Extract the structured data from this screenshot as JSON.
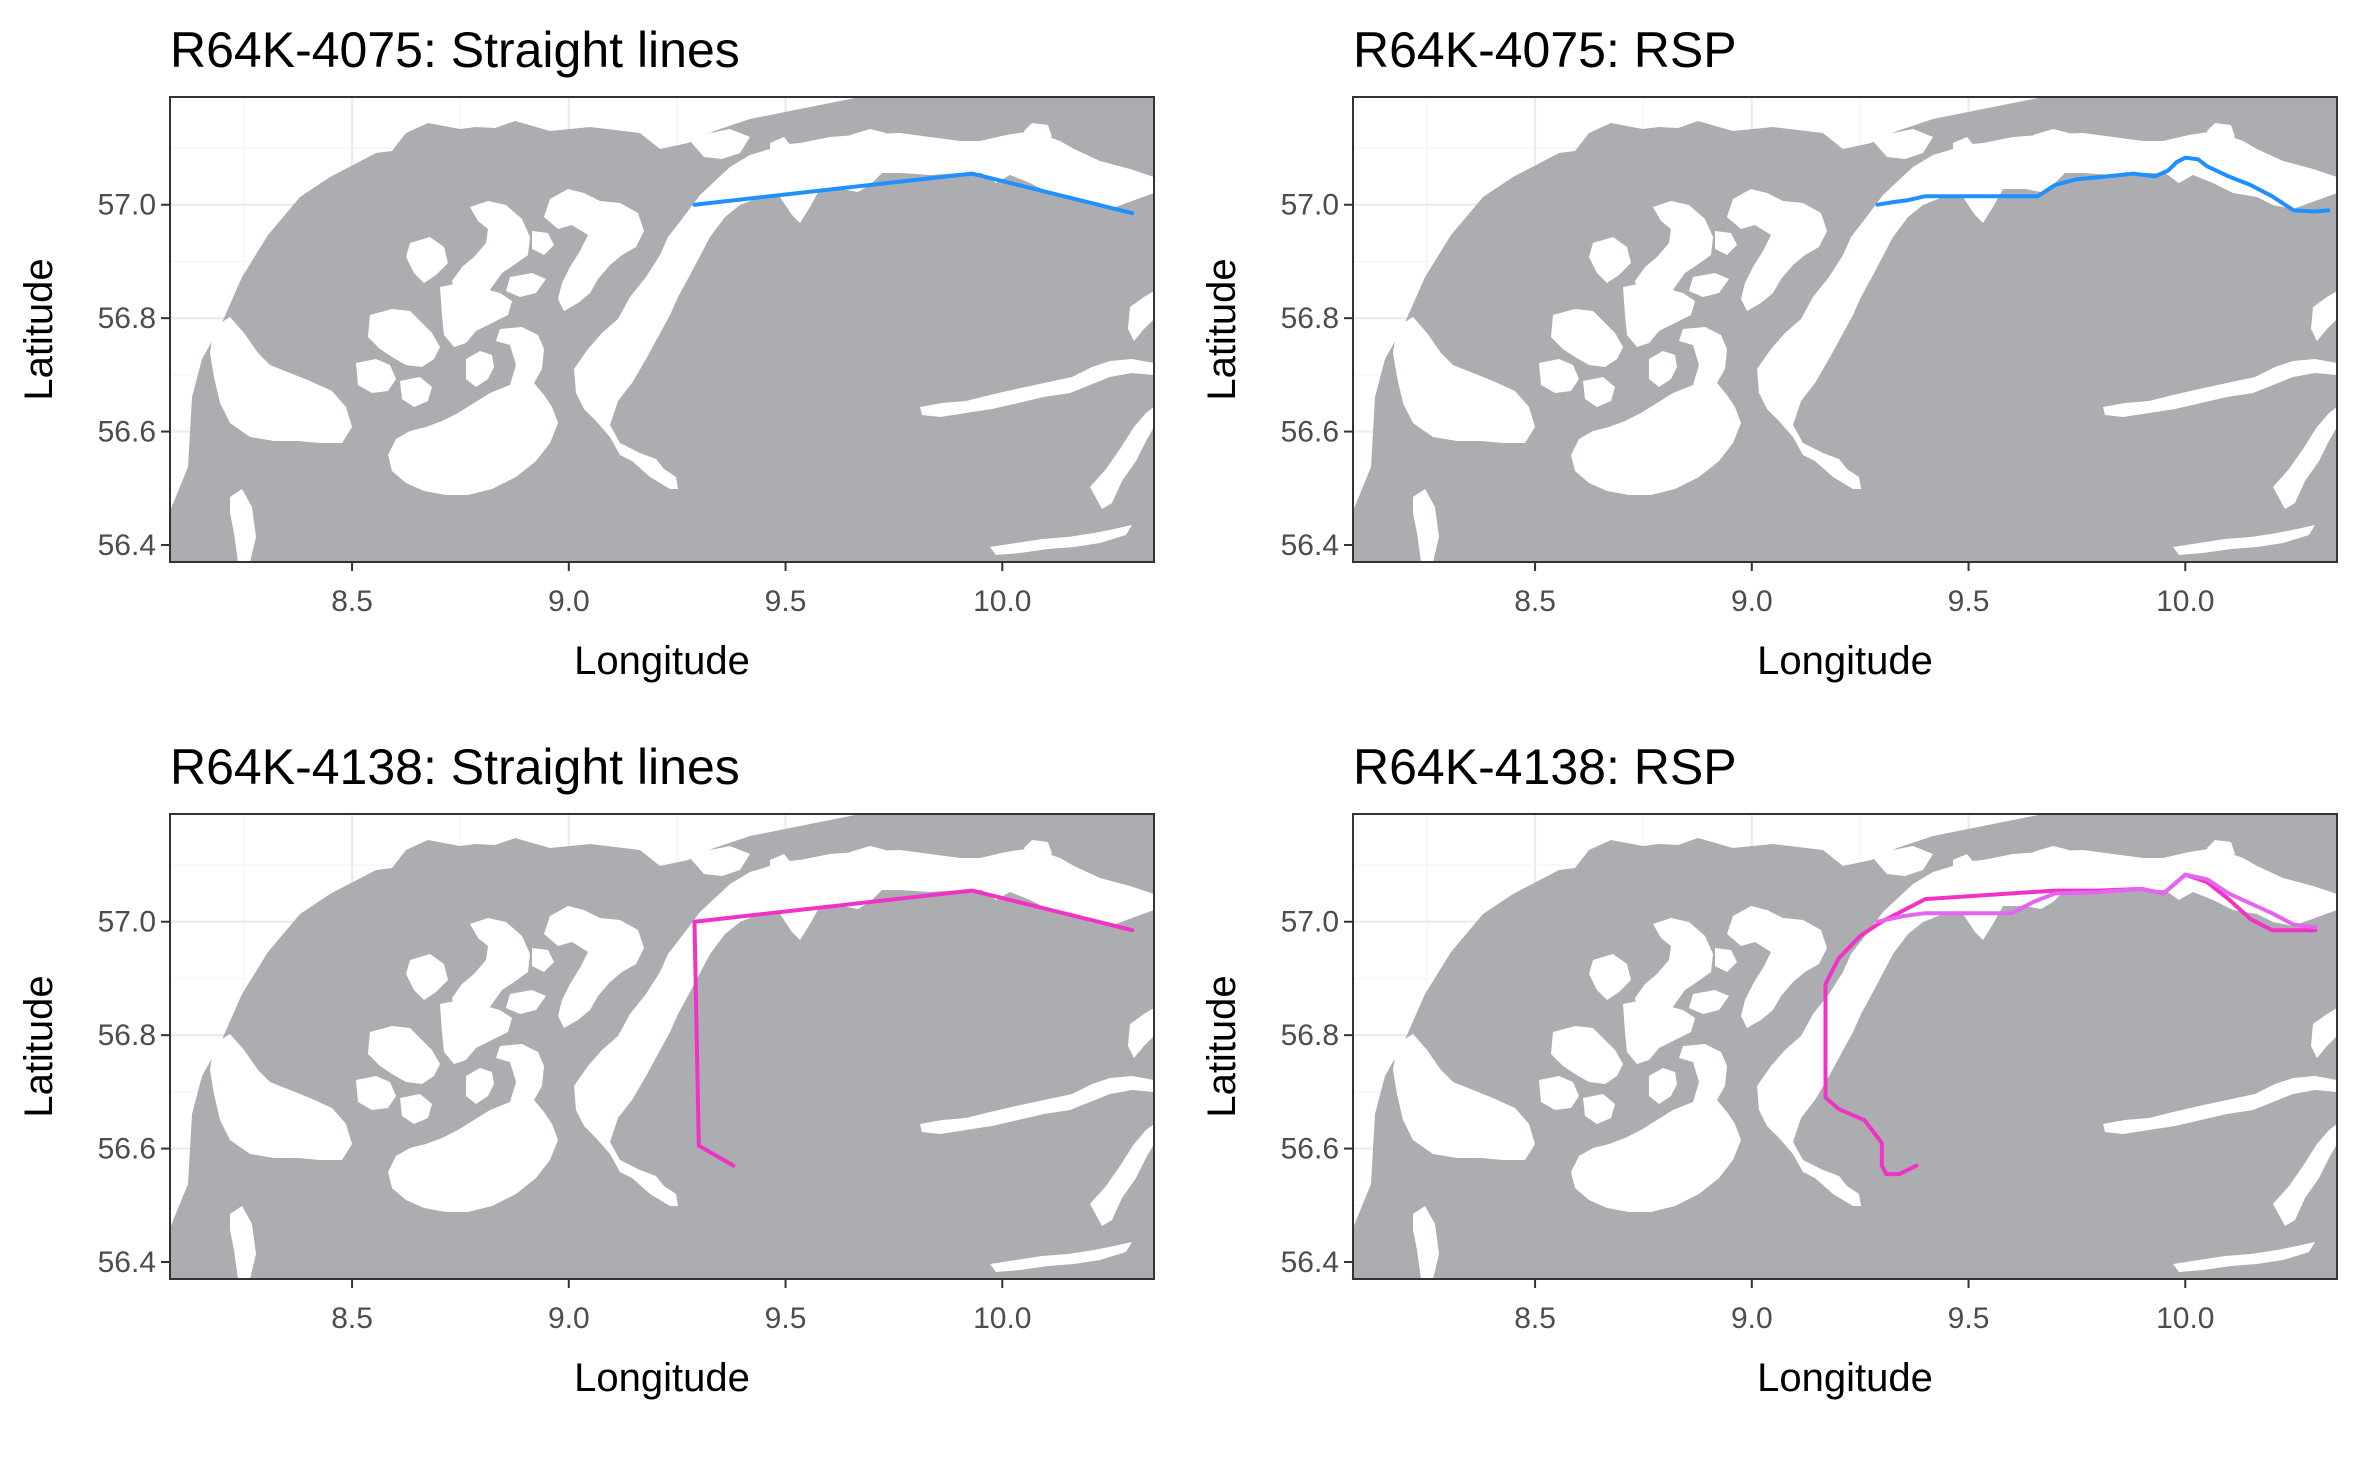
{
  "figure": {
    "axes": {
      "xlabel": "Longitude",
      "ylabel": "Latitude"
    },
    "xlim": [
      8.08,
      10.35
    ],
    "ylim": [
      56.37,
      57.19
    ],
    "x_ticks": [
      "8.5",
      "9.0",
      "9.5",
      "10.0"
    ],
    "y_ticks": [
      "56.4",
      "56.6",
      "56.8",
      "57.0"
    ],
    "x_tick_values": [
      8.5,
      9.0,
      9.5,
      10.0
    ],
    "y_tick_values": [
      56.4,
      56.6,
      56.8,
      57.0
    ],
    "colors": {
      "land": "#acadb0",
      "water": "#ffffff",
      "grid": "#ebebeb",
      "border": "#333333"
    }
  },
  "panels": [
    {
      "title": "R64K-4075: Straight lines"
    },
    {
      "title": "R64K-4075: RSP"
    },
    {
      "title": "R64K-4138: Straight lines"
    },
    {
      "title": "R64K-4138: RSP"
    }
  ],
  "chart_data": [
    {
      "type": "map",
      "title": "R64K-4075: Straight lines",
      "xlabel": "Longitude",
      "ylabel": "Latitude",
      "xlim": [
        8.08,
        10.35
      ],
      "ylim": [
        56.37,
        57.19
      ],
      "series": [
        {
          "color": "#1e90ff",
          "points": [
            [
              9.29,
              57.0
            ],
            [
              9.93,
              57.055
            ],
            [
              10.3,
              56.985
            ]
          ]
        }
      ]
    },
    {
      "type": "map",
      "title": "R64K-4075: RSP",
      "xlabel": "Longitude",
      "ylabel": "Latitude",
      "xlim": [
        8.08,
        10.35
      ],
      "ylim": [
        56.37,
        57.19
      ],
      "series": [
        {
          "color": "#1e90ff",
          "points": [
            [
              9.29,
              57.0
            ],
            [
              9.33,
              57.005
            ],
            [
              9.36,
              57.008
            ],
            [
              9.4,
              57.015
            ],
            [
              9.5,
              57.015
            ],
            [
              9.6,
              57.015
            ],
            [
              9.66,
              57.015
            ],
            [
              9.7,
              57.035
            ],
            [
              9.75,
              57.045
            ],
            [
              9.82,
              57.05
            ],
            [
              9.88,
              57.055
            ],
            [
              9.93,
              57.05
            ],
            [
              9.96,
              57.06
            ],
            [
              9.98,
              57.075
            ],
            [
              10.0,
              57.083
            ],
            [
              10.03,
              57.08
            ],
            [
              10.05,
              57.068
            ],
            [
              10.1,
              57.05
            ],
            [
              10.15,
              57.035
            ],
            [
              10.2,
              57.015
            ],
            [
              10.25,
              56.99
            ],
            [
              10.3,
              56.988
            ],
            [
              10.33,
              56.99
            ]
          ]
        }
      ]
    },
    {
      "type": "map",
      "title": "R64K-4138: Straight lines",
      "xlabel": "Longitude",
      "ylabel": "Latitude",
      "xlim": [
        8.08,
        10.35
      ],
      "ylim": [
        56.37,
        57.19
      ],
      "series": [
        {
          "color": "#f033c6",
          "points": [
            [
              9.38,
              56.57
            ],
            [
              9.3,
              56.605
            ],
            [
              9.29,
              57.0
            ],
            [
              9.93,
              57.055
            ],
            [
              10.3,
              56.985
            ]
          ]
        }
      ]
    },
    {
      "type": "map",
      "title": "R64K-4138: RSP",
      "xlabel": "Longitude",
      "ylabel": "Latitude",
      "xlim": [
        8.08,
        10.35
      ],
      "ylim": [
        56.37,
        57.19
      ],
      "series": [
        {
          "color": "#f033c6",
          "points": [
            [
              9.38,
              56.57
            ],
            [
              9.34,
              56.555
            ],
            [
              9.31,
              56.555
            ],
            [
              9.3,
              56.57
            ],
            [
              9.3,
              56.61
            ],
            [
              9.26,
              56.65
            ],
            [
              9.2,
              56.67
            ],
            [
              9.17,
              56.69
            ],
            [
              9.17,
              56.72
            ],
            [
              9.17,
              56.8
            ],
            [
              9.17,
              56.89
            ],
            [
              9.2,
              56.935
            ],
            [
              9.25,
              56.975
            ],
            [
              9.3,
              57.0
            ],
            [
              9.35,
              57.02
            ],
            [
              9.4,
              57.04
            ],
            [
              9.5,
              57.045
            ],
            [
              9.6,
              57.05
            ],
            [
              9.7,
              57.055
            ],
            [
              9.8,
              57.055
            ],
            [
              9.9,
              57.058
            ],
            [
              9.95,
              57.05
            ],
            [
              10.0,
              57.083
            ],
            [
              10.05,
              57.07
            ],
            [
              10.1,
              57.04
            ],
            [
              10.15,
              57.005
            ],
            [
              10.2,
              56.985
            ],
            [
              10.3,
              56.985
            ]
          ]
        },
        {
          "color": "#e466f0",
          "points": [
            [
              9.29,
              57.0
            ],
            [
              9.35,
              57.01
            ],
            [
              9.4,
              57.015
            ],
            [
              9.5,
              57.015
            ],
            [
              9.6,
              57.015
            ],
            [
              9.65,
              57.035
            ],
            [
              9.7,
              57.05
            ],
            [
              9.8,
              57.052
            ],
            [
              9.9,
              57.058
            ],
            [
              9.95,
              57.05
            ],
            [
              10.0,
              57.083
            ],
            [
              10.05,
              57.075
            ],
            [
              10.1,
              57.05
            ],
            [
              10.2,
              57.015
            ],
            [
              10.25,
              56.995
            ],
            [
              10.3,
              56.99
            ]
          ]
        }
      ]
    }
  ]
}
